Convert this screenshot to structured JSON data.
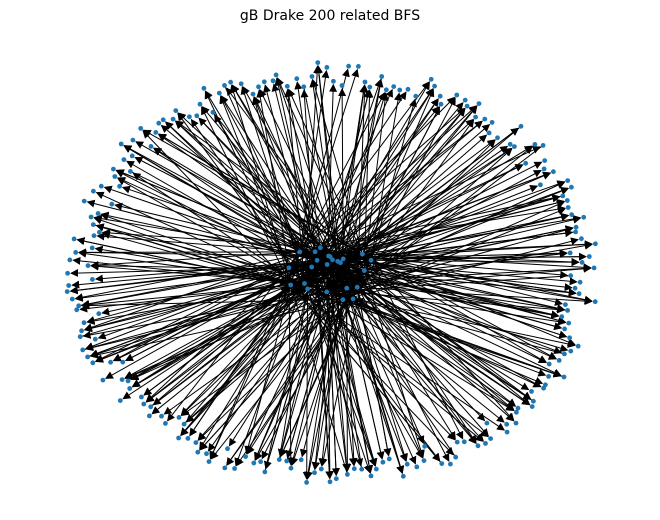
{
  "figure": {
    "title": "gB Drake 200 related BFS"
  },
  "graph": {
    "type": "directed-network",
    "layout": "spring",
    "node_color": "#1f77b4",
    "edge_color": "#000000",
    "arrowheads": true,
    "axes_visible": false,
    "peripheral_node_count": 200,
    "hub_node_count": 24
  }
}
